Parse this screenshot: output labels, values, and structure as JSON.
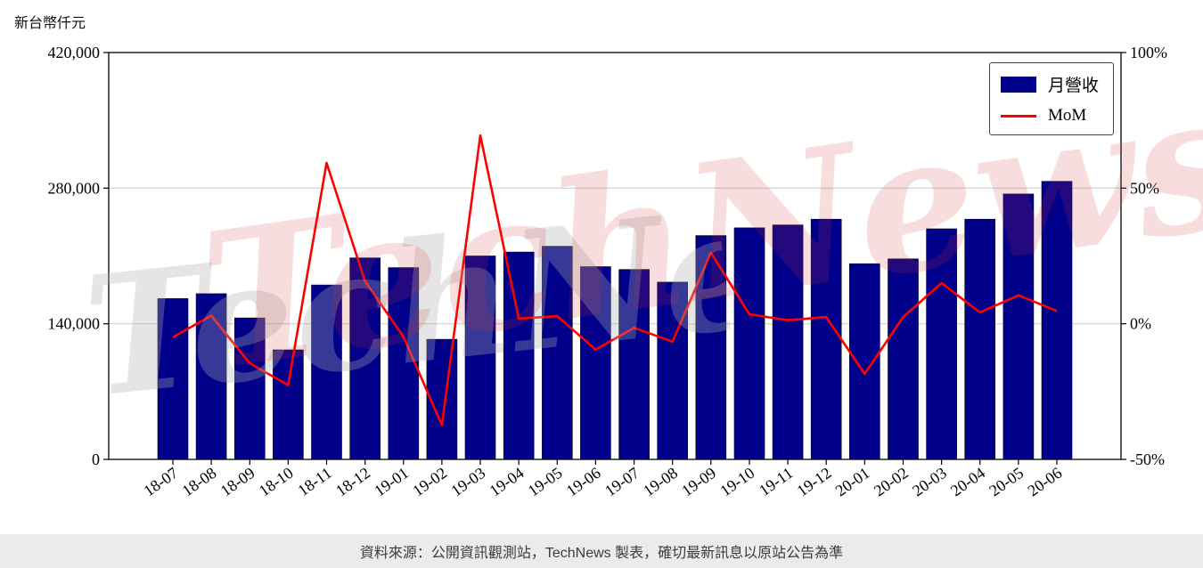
{
  "page": {
    "y_axis_title": "新台幣仟元",
    "watermark": "TechNews",
    "footer": "資料來源：公開資訊觀測站，TechNews 製表，確切最新訊息以原站公告為準"
  },
  "chart_data": {
    "type": "bar",
    "title": "",
    "xlabel": "",
    "ylabel": "新台幣仟元",
    "legend_position": "top-right",
    "grid": true,
    "categories": [
      "18-07",
      "18-08",
      "18-09",
      "18-10",
      "18-11",
      "18-12",
      "19-01",
      "19-02",
      "19-03",
      "19-04",
      "19-05",
      "19-06",
      "19-07",
      "19-08",
      "19-09",
      "19-10",
      "19-11",
      "19-12",
      "20-01",
      "20-02",
      "20-03",
      "20-04",
      "20-05",
      "20-06"
    ],
    "series": [
      {
        "name": "月營收",
        "type": "bar",
        "axis": "left",
        "color": "#00008b",
        "values": [
          166000,
          171000,
          146000,
          113000,
          180000,
          208000,
          198000,
          124000,
          210000,
          214000,
          220000,
          199000,
          196000,
          183000,
          231000,
          239000,
          242000,
          248000,
          202000,
          207000,
          238000,
          248000,
          274000,
          287000
        ]
      },
      {
        "name": "MoM",
        "type": "line",
        "axis": "right",
        "color": "#ff0000",
        "values": [
          -5.0,
          3.0,
          -14.6,
          -22.6,
          59.3,
          15.6,
          -4.8,
          -37.4,
          69.4,
          1.9,
          2.8,
          -9.5,
          -1.5,
          -6.6,
          26.2,
          3.5,
          1.3,
          2.5,
          -18.5,
          2.5,
          15.0,
          4.2,
          10.5,
          4.7
        ]
      }
    ],
    "left_axis": {
      "min": 0,
      "max": 420000,
      "tick_values": [
        0,
        140000,
        280000,
        420000
      ],
      "tick_labels": [
        "0",
        "140,000",
        "280,000",
        "420,000"
      ]
    },
    "right_axis": {
      "min": -50,
      "max": 100,
      "tick_values": [
        -50,
        0,
        50,
        100
      ],
      "tick_labels": [
        "-50%",
        "0%",
        "50%",
        "100%"
      ]
    },
    "gridline_values": [
      140000,
      280000
    ]
  }
}
